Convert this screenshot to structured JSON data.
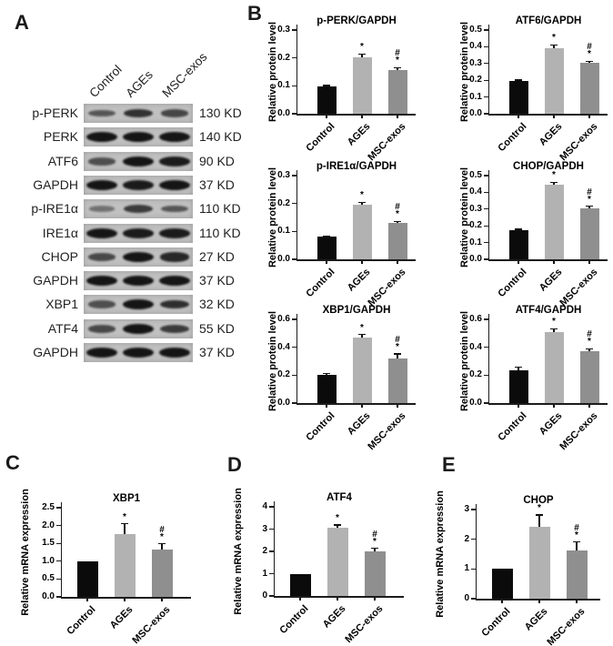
{
  "figure": {
    "panel_labels": {
      "a": "A",
      "b": "B",
      "c": "C",
      "d": "D",
      "e": "E"
    }
  },
  "panel_a": {
    "lane_labels": [
      "Control",
      "AGEs",
      "MSC-exos"
    ],
    "rows": [
      {
        "protein": "p-PERK",
        "kd": "130 KD",
        "bands": [
          0.5,
          0.78,
          0.62
        ]
      },
      {
        "protein": "PERK",
        "kd": "140 KD",
        "bands": [
          1.0,
          1.0,
          1.0
        ]
      },
      {
        "protein": "ATF6",
        "kd": "90 KD",
        "bands": [
          0.55,
          1.0,
          0.95
        ]
      },
      {
        "protein": "GAPDH",
        "kd": "37 KD",
        "bands": [
          1.0,
          0.95,
          1.0
        ]
      },
      {
        "protein": "p-IRE1α",
        "kd": "110 KD",
        "bands": [
          0.28,
          0.7,
          0.5
        ]
      },
      {
        "protein": "IRE1α",
        "kd": "110 KD",
        "bands": [
          1.0,
          0.95,
          0.95
        ]
      },
      {
        "protein": "CHOP",
        "kd": "27 KD",
        "bands": [
          0.6,
          1.0,
          0.85
        ]
      },
      {
        "protein": "GAPDH",
        "kd": "37 KD",
        "bands": [
          1.0,
          1.0,
          1.0
        ]
      },
      {
        "protein": "XBP1",
        "kd": "32 KD",
        "bands": [
          0.55,
          1.0,
          0.8
        ]
      },
      {
        "protein": "ATF4",
        "kd": "55 KD",
        "bands": [
          0.6,
          1.0,
          0.7
        ]
      },
      {
        "protein": "GAPDH",
        "kd": "37 KD",
        "bands": [
          1.0,
          1.0,
          1.0
        ]
      }
    ]
  },
  "style": {
    "bar_colors": [
      "#0b0b0b",
      "#b2b2b2",
      "#8f8f8f"
    ],
    "axis_color": "#1c1c1c"
  },
  "chart_data": [
    {
      "type": "bar",
      "panel": "B",
      "title": "p-PERK/GAPDH",
      "ylabel": "Relative protein level",
      "categories": [
        "Control",
        "AGEs",
        "MSC-exos"
      ],
      "values": [
        0.097,
        0.202,
        0.155
      ],
      "errors": [
        0.004,
        0.012,
        0.01
      ],
      "annotations": [
        "",
        "*",
        "#*"
      ],
      "ylim": [
        0,
        0.3
      ],
      "yticks": [
        "0.0",
        "0.1",
        "0.2",
        "0.3"
      ]
    },
    {
      "type": "bar",
      "panel": "B",
      "title": "ATF6/GAPDH",
      "ylabel": "Relative protein level",
      "categories": [
        "Control",
        "AGEs",
        "MSC-exos"
      ],
      "values": [
        0.195,
        0.393,
        0.302
      ],
      "errors": [
        0.007,
        0.018,
        0.012
      ],
      "annotations": [
        "",
        "*",
        "#*"
      ],
      "ylim": [
        0,
        0.5
      ],
      "yticks": [
        "0.0",
        "0.1",
        "0.2",
        "0.3",
        "0.4",
        "0.5"
      ]
    },
    {
      "type": "bar",
      "panel": "B",
      "title": "p-IRE1α/GAPDH",
      "ylabel": "Relative protein level",
      "categories": [
        "Control",
        "AGEs",
        "MSC-exos"
      ],
      "values": [
        0.08,
        0.196,
        0.13
      ],
      "errors": [
        0.003,
        0.008,
        0.006
      ],
      "annotations": [
        "",
        "*",
        "#*"
      ],
      "ylim": [
        0,
        0.3
      ],
      "yticks": [
        "0.0",
        "0.1",
        "0.2",
        "0.3"
      ]
    },
    {
      "type": "bar",
      "panel": "B",
      "title": "CHOP/GAPDH",
      "ylabel": "Relative protein level",
      "categories": [
        "Control",
        "AGEs",
        "MSC-exos"
      ],
      "values": [
        0.175,
        0.448,
        0.305
      ],
      "errors": [
        0.005,
        0.012,
        0.012
      ],
      "annotations": [
        "",
        "*",
        "#*"
      ],
      "ylim": [
        0,
        0.5
      ],
      "yticks": [
        "0.0",
        "0.1",
        "0.2",
        "0.3",
        "0.4",
        "0.5"
      ]
    },
    {
      "type": "bar",
      "panel": "B",
      "title": "XBP1/GAPDH",
      "ylabel": "Relative protein level",
      "categories": [
        "Control",
        "AGEs",
        "MSC-exos"
      ],
      "values": [
        0.205,
        0.47,
        0.32
      ],
      "errors": [
        0.006,
        0.022,
        0.032
      ],
      "annotations": [
        "",
        "*",
        "#*"
      ],
      "ylim": [
        0,
        0.6
      ],
      "yticks": [
        "0.0",
        "0.2",
        "0.4",
        "0.6"
      ]
    },
    {
      "type": "bar",
      "panel": "B",
      "title": "ATF4/GAPDH",
      "ylabel": "Relative protein level",
      "categories": [
        "Control",
        "AGEs",
        "MSC-exos"
      ],
      "values": [
        0.238,
        0.51,
        0.372
      ],
      "errors": [
        0.02,
        0.022,
        0.018
      ],
      "annotations": [
        "",
        "*",
        "#*"
      ],
      "ylim": [
        0,
        0.6
      ],
      "yticks": [
        "0.0",
        "0.2",
        "0.4",
        "0.6"
      ]
    },
    {
      "type": "bar",
      "panel": "C",
      "title": "XBP1",
      "ylabel": "Relative mRNA expression",
      "categories": [
        "Control",
        "AGEs",
        "MSC-exos"
      ],
      "values": [
        1.0,
        1.77,
        1.33
      ],
      "errors": [
        0,
        0.28,
        0.16
      ],
      "annotations": [
        "",
        "*",
        "#*"
      ],
      "ylim": [
        0,
        2.5
      ],
      "yticks": [
        "0.0",
        "0.5",
        "1.0",
        "1.5",
        "2.0",
        "2.5"
      ]
    },
    {
      "type": "bar",
      "panel": "D",
      "title": "ATF4",
      "ylabel": "Relative mRNA expression",
      "categories": [
        "Control",
        "AGEs",
        "MSC-exos"
      ],
      "values": [
        1.0,
        3.05,
        2.0
      ],
      "errors": [
        0,
        0.13,
        0.14
      ],
      "annotations": [
        "",
        "*",
        "#*"
      ],
      "ylim": [
        0,
        4
      ],
      "yticks": [
        "0",
        "1",
        "2",
        "3",
        "4"
      ]
    },
    {
      "type": "bar",
      "panel": "E",
      "title": "CHOP",
      "ylabel": "Relative mRNA expression",
      "categories": [
        "Control",
        "AGEs",
        "MSC-exos"
      ],
      "values": [
        1.02,
        2.42,
        1.63
      ],
      "errors": [
        0,
        0.4,
        0.28
      ],
      "annotations": [
        "",
        "*",
        "#*"
      ],
      "ylim": [
        0,
        3
      ],
      "yticks": [
        "0",
        "1",
        "2",
        "3"
      ]
    }
  ]
}
